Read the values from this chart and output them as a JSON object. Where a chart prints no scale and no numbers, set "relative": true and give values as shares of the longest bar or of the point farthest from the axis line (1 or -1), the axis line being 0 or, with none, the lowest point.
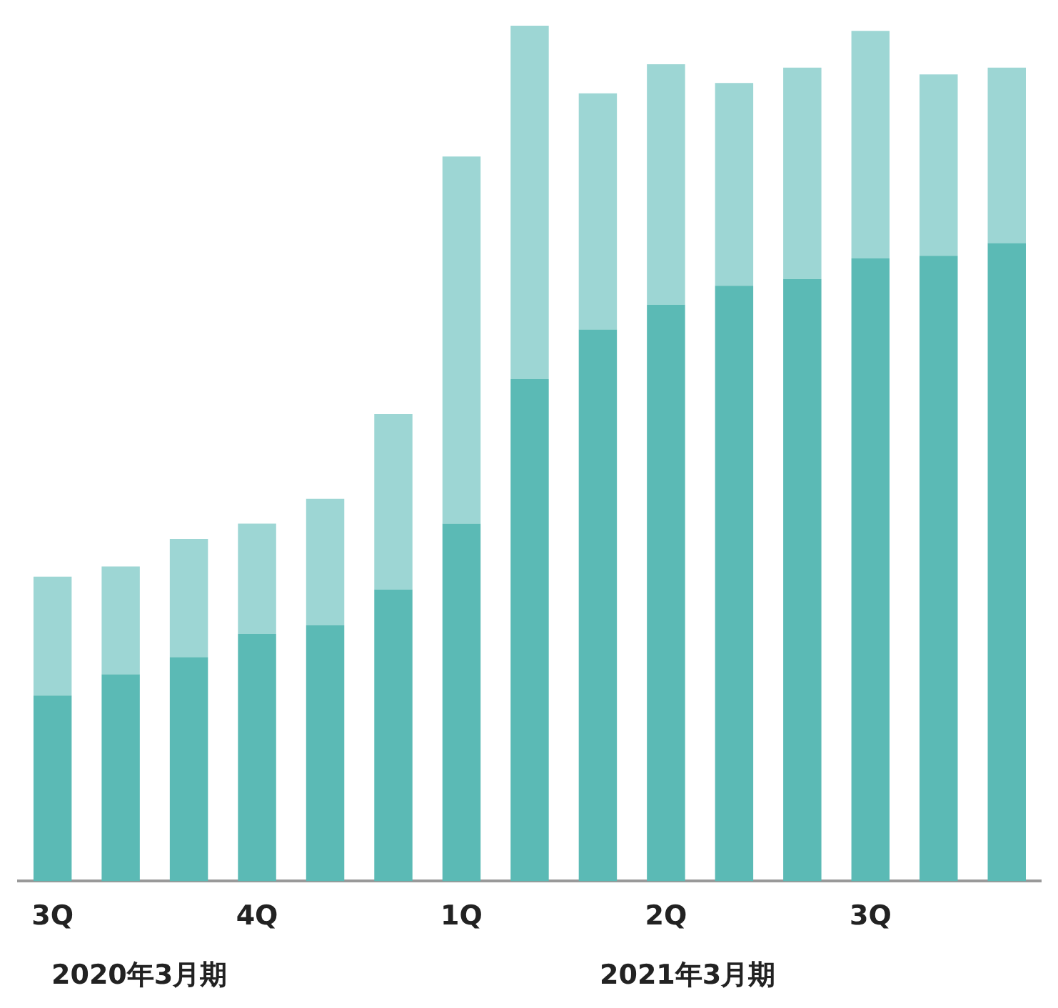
{
  "chart_data": {
    "type": "bar",
    "stacked": true,
    "relative": true,
    "grid": false,
    "legend": false,
    "categories": [
      "3Q",
      null,
      null,
      "4Q",
      null,
      null,
      "1Q",
      null,
      null,
      "2Q",
      null,
      null,
      "3Q",
      null,
      null
    ],
    "series": [
      {
        "color": "#5bbab5",
        "values": [
          0.217,
          0.242,
          0.262,
          0.289,
          0.299,
          0.341,
          0.418,
          0.587,
          0.645,
          0.674,
          0.696,
          0.704,
          0.728,
          0.731,
          0.746
        ]
      },
      {
        "color": "#9dd6d4",
        "values": [
          0.139,
          0.126,
          0.138,
          0.129,
          0.148,
          0.205,
          0.429,
          0.413,
          0.276,
          0.281,
          0.237,
          0.247,
          0.266,
          0.212,
          0.205
        ]
      }
    ],
    "annotations": [
      "2020年3月期",
      "2021年3月期"
    ]
  }
}
